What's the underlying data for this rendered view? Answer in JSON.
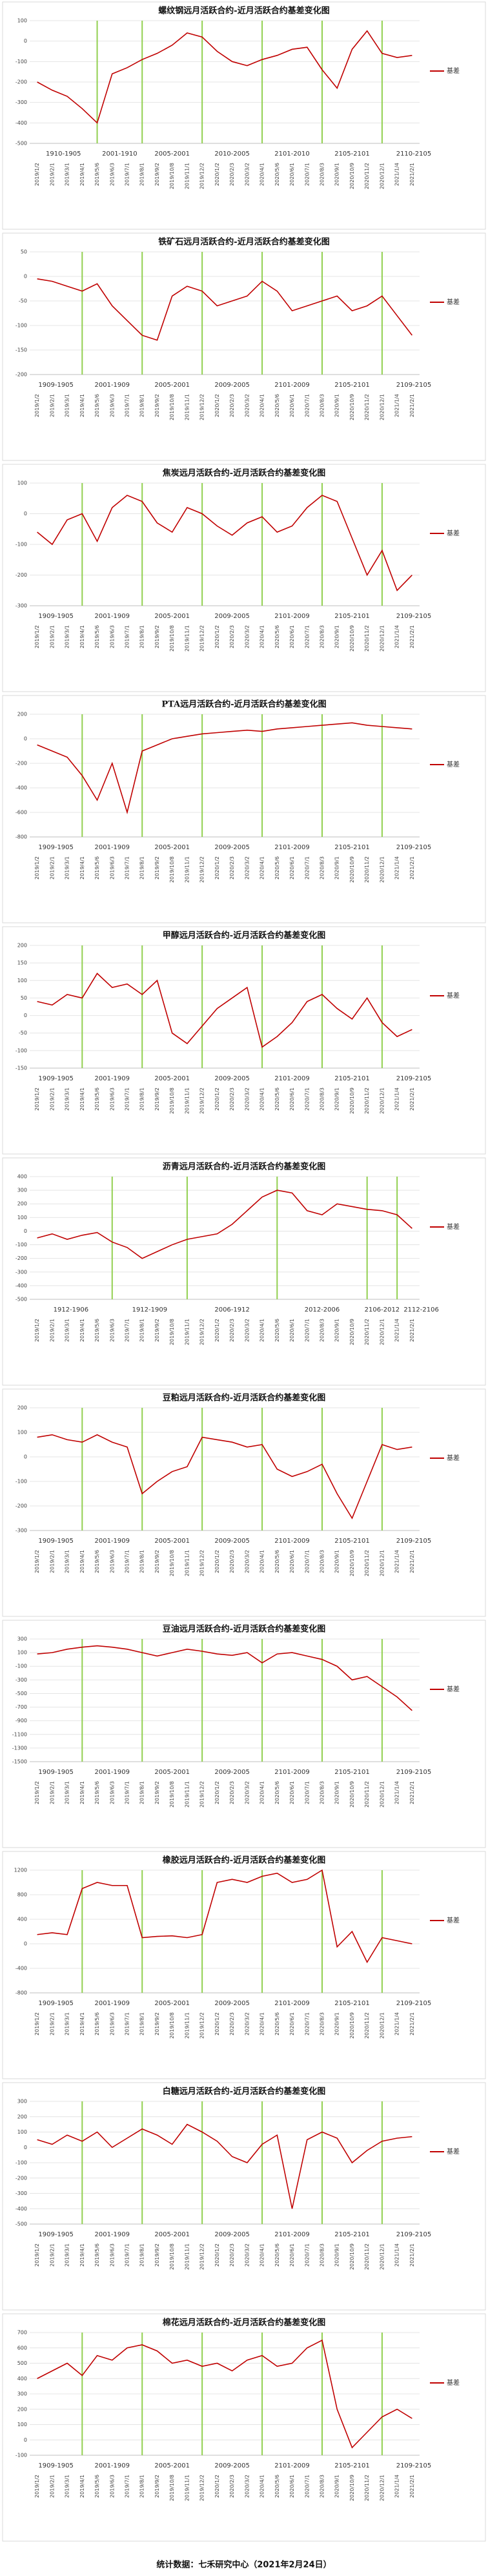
{
  "chart_data": [
    {
      "type": "line",
      "title": "螺纹钢远月活跃合约-近月活跃合约基差变化图",
      "categories": [
        "2019/1/2",
        "2019/2/1",
        "2019/3/1",
        "2019/4/1",
        "2019/5/6",
        "2019/6/3",
        "2019/7/1",
        "2019/8/1",
        "2019/9/2",
        "2019/10/8",
        "2019/11/1",
        "2019/12/2",
        "2020/1/2",
        "2020/2/3",
        "2020/3/2",
        "2020/4/1",
        "2020/5/6",
        "2020/6/1",
        "2020/7/1",
        "2020/8/3",
        "2020/9/1",
        "2020/10/9",
        "2020/11/2",
        "2020/12/1",
        "2021/1/4",
        "2021/2/1"
      ],
      "series": [
        {
          "name": "基差",
          "color": "#c00000",
          "values": [
            -200,
            -240,
            -270,
            -330,
            -400,
            -160,
            -130,
            -90,
            -60,
            -20,
            40,
            20,
            -50,
            -100,
            -120,
            -90,
            -70,
            -40,
            -30,
            -140,
            -230,
            -40,
            50,
            -60,
            -80,
            -70
          ]
        }
      ],
      "ylim": [
        -500,
        100
      ],
      "yticks": [
        100,
        0,
        -100,
        -200,
        -300,
        -400,
        -500
      ],
      "grid": true,
      "periods": [
        "1910-1905",
        "2001-1910",
        "2005-2001",
        "2010-2005",
        "2101-2010",
        "2105-2101",
        "2110-2105"
      ],
      "dividers": [
        "2019/5/6",
        "2019/8/1",
        "2019/12/2",
        "2020/4/1",
        "2020/8/3",
        "2020/12/1"
      ],
      "divider_color": "#92d050"
    },
    {
      "type": "line",
      "title": "铁矿石远月活跃合约-近月活跃合约基差变化图",
      "categories": [
        "2019/1/2",
        "2019/2/1",
        "2019/3/1",
        "2019/4/1",
        "2019/5/6",
        "2019/6/3",
        "2019/7/1",
        "2019/8/1",
        "2019/9/2",
        "2019/10/8",
        "2019/11/1",
        "2019/12/2",
        "2020/1/2",
        "2020/2/3",
        "2020/3/2",
        "2020/4/1",
        "2020/5/6",
        "2020/6/1",
        "2020/7/1",
        "2020/8/3",
        "2020/9/1",
        "2020/10/9",
        "2020/11/2",
        "2020/12/1",
        "2021/1/4",
        "2021/2/1"
      ],
      "series": [
        {
          "name": "基差",
          "color": "#c00000",
          "values": [
            -5,
            -10,
            -20,
            -30,
            -15,
            -60,
            -90,
            -120,
            -130,
            -40,
            -20,
            -30,
            -60,
            -50,
            -40,
            -10,
            -30,
            -70,
            -60,
            -50,
            -40,
            -70,
            -60,
            -40,
            -80,
            -120
          ]
        }
      ],
      "ylim": [
        -200,
        50
      ],
      "yticks": [
        50,
        0,
        -50,
        -100,
        -150,
        -200
      ],
      "grid": true,
      "periods": [
        "1909-1905",
        "2001-1909",
        "2005-2001",
        "2009-2005",
        "2101-2009",
        "2105-2101",
        "2109-2105"
      ],
      "dividers": [
        "2019/4/1",
        "2019/8/1",
        "2019/12/2",
        "2020/4/1",
        "2020/8/3",
        "2020/12/1"
      ],
      "divider_color": "#92d050"
    },
    {
      "type": "line",
      "title": "焦炭远月活跃合约-近月活跃合约基差变化图",
      "categories": [
        "2019/1/2",
        "2019/2/1",
        "2019/3/1",
        "2019/4/1",
        "2019/5/6",
        "2019/6/3",
        "2019/7/1",
        "2019/8/1",
        "2019/9/2",
        "2019/10/8",
        "2019/11/1",
        "2019/12/2",
        "2020/1/2",
        "2020/2/3",
        "2020/3/2",
        "2020/4/1",
        "2020/5/6",
        "2020/6/1",
        "2020/7/1",
        "2020/8/3",
        "2020/9/1",
        "2020/10/9",
        "2020/11/2",
        "2020/12/1",
        "2021/1/4",
        "2021/2/1"
      ],
      "series": [
        {
          "name": "基差",
          "color": "#c00000",
          "values": [
            -60,
            -100,
            -20,
            0,
            -90,
            20,
            60,
            40,
            -30,
            -60,
            20,
            0,
            -40,
            -70,
            -30,
            -10,
            -60,
            -40,
            20,
            60,
            40,
            -80,
            -200,
            -120,
            -250,
            -200
          ]
        }
      ],
      "ylim": [
        -300,
        100
      ],
      "yticks": [
        100,
        0,
        -100,
        -200,
        -300
      ],
      "grid": true,
      "periods": [
        "1909-1905",
        "2001-1909",
        "2005-2001",
        "2009-2005",
        "2101-2009",
        "2105-2101",
        "2109-2105"
      ],
      "dividers": [
        "2019/4/1",
        "2019/8/1",
        "2019/12/2",
        "2020/4/1",
        "2020/8/3",
        "2020/12/1"
      ],
      "divider_color": "#92d050"
    },
    {
      "type": "line",
      "title": "PTA远月活跃合约-近月活跃合约基差变化图",
      "categories": [
        "2019/1/2",
        "2019/2/1",
        "2019/3/1",
        "2019/4/1",
        "2019/5/6",
        "2019/6/3",
        "2019/7/1",
        "2019/8/1",
        "2019/9/2",
        "2019/10/8",
        "2019/11/1",
        "2019/12/2",
        "2020/1/2",
        "2020/2/3",
        "2020/3/2",
        "2020/4/1",
        "2020/5/6",
        "2020/6/1",
        "2020/7/1",
        "2020/8/3",
        "2020/9/1",
        "2020/10/9",
        "2020/11/2",
        "2020/12/1",
        "2021/1/4",
        "2021/2/1"
      ],
      "series": [
        {
          "name": "基差",
          "color": "#c00000",
          "values": [
            -50,
            -100,
            -150,
            -300,
            -500,
            -200,
            -600,
            -100,
            -50,
            0,
            20,
            40,
            50,
            60,
            70,
            60,
            80,
            90,
            100,
            110,
            120,
            130,
            110,
            100,
            90,
            80
          ]
        }
      ],
      "ylim": [
        -800,
        200
      ],
      "yticks": [
        200,
        0,
        -200,
        -400,
        -600,
        -800
      ],
      "grid": true,
      "periods": [
        "1909-1905",
        "2001-1909",
        "2005-2001",
        "2009-2005",
        "2101-2009",
        "2105-2101",
        "2109-2105"
      ],
      "dividers": [
        "2019/4/1",
        "2019/8/1",
        "2019/12/2",
        "2020/4/1",
        "2020/8/3",
        "2020/12/1"
      ],
      "divider_color": "#92d050"
    },
    {
      "type": "line",
      "title": "甲醇远月活跃合约-近月活跃合约基差变化图",
      "categories": [
        "2019/1/2",
        "2019/2/1",
        "2019/3/1",
        "2019/4/1",
        "2019/5/6",
        "2019/6/3",
        "2019/7/1",
        "2019/8/1",
        "2019/9/2",
        "2019/10/8",
        "2019/11/1",
        "2019/12/2",
        "2020/1/2",
        "2020/2/3",
        "2020/3/2",
        "2020/4/1",
        "2020/5/6",
        "2020/6/1",
        "2020/7/1",
        "2020/8/3",
        "2020/9/1",
        "2020/10/9",
        "2020/11/2",
        "2020/12/1",
        "2021/1/4",
        "2021/2/1"
      ],
      "series": [
        {
          "name": "基差",
          "color": "#c00000",
          "values": [
            40,
            30,
            60,
            50,
            120,
            80,
            90,
            60,
            100,
            -50,
            -80,
            -30,
            20,
            50,
            80,
            -90,
            -60,
            -20,
            40,
            60,
            20,
            -10,
            50,
            -20,
            -60,
            -40
          ]
        }
      ],
      "ylim": [
        -150,
        200
      ],
      "yticks": [
        200,
        150,
        100,
        50,
        0,
        -50,
        -100,
        -150
      ],
      "grid": true,
      "periods": [
        "1909-1905",
        "2001-1909",
        "2005-2001",
        "2009-2005",
        "2101-2009",
        "2105-2101",
        "2109-2105"
      ],
      "dividers": [
        "2019/4/1",
        "2019/8/1",
        "2019/12/2",
        "2020/4/1",
        "2020/8/3",
        "2020/12/1"
      ],
      "divider_color": "#92d050"
    },
    {
      "type": "line",
      "title": "沥青远月活跃合约-近月活跃合约基差变化图",
      "categories": [
        "2019/1/2",
        "2019/2/1",
        "2019/3/1",
        "2019/4/1",
        "2019/5/6",
        "2019/6/3",
        "2019/7/1",
        "2019/8/1",
        "2019/9/2",
        "2019/10/8",
        "2019/11/1",
        "2019/12/2",
        "2020/1/2",
        "2020/2/3",
        "2020/3/2",
        "2020/4/1",
        "2020/5/6",
        "2020/6/1",
        "2020/7/1",
        "2020/8/3",
        "2020/9/1",
        "2020/10/9",
        "2020/11/2",
        "2020/12/1",
        "2021/1/4",
        "2021/2/1"
      ],
      "series": [
        {
          "name": "基差",
          "color": "#c00000",
          "values": [
            -50,
            -20,
            -60,
            -30,
            -10,
            -80,
            -120,
            -200,
            -150,
            -100,
            -60,
            -40,
            -20,
            50,
            150,
            250,
            300,
            280,
            150,
            120,
            200,
            180,
            160,
            150,
            120,
            20
          ]
        }
      ],
      "ylim": [
        -500,
        400
      ],
      "yticks": [
        400,
        300,
        200,
        100,
        0,
        -100,
        -200,
        -300,
        -400,
        -500
      ],
      "grid": true,
      "periods": [
        "1912-1906",
        "1912-1909",
        "2006-1912",
        "2012-2006",
        "2106-2012",
        "2112-2106"
      ],
      "dividers": [
        "2019/6/3",
        "2019/11/1",
        "2020/5/6",
        "2020/11/2",
        "2021/1/4"
      ],
      "divider_color": "#92d050"
    },
    {
      "type": "line",
      "title": "豆粕远月活跃合约-近月活跃合约基差变化图",
      "categories": [
        "2019/1/2",
        "2019/2/1",
        "2019/3/1",
        "2019/4/1",
        "2019/5/6",
        "2019/6/3",
        "2019/7/1",
        "2019/8/1",
        "2019/9/2",
        "2019/10/8",
        "2019/11/1",
        "2019/12/2",
        "2020/1/2",
        "2020/2/3",
        "2020/3/2",
        "2020/4/1",
        "2020/5/6",
        "2020/6/1",
        "2020/7/1",
        "2020/8/3",
        "2020/9/1",
        "2020/10/9",
        "2020/11/2",
        "2020/12/1",
        "2021/1/4",
        "2021/2/1"
      ],
      "series": [
        {
          "name": "基差",
          "color": "#c00000",
          "values": [
            80,
            90,
            70,
            60,
            90,
            60,
            40,
            -150,
            -100,
            -60,
            -40,
            80,
            70,
            60,
            40,
            50,
            -50,
            -80,
            -60,
            -30,
            -150,
            -250,
            -100,
            50,
            30,
            40
          ]
        }
      ],
      "ylim": [
        -300,
        200
      ],
      "yticks": [
        200,
        100,
        0,
        -100,
        -200,
        -300
      ],
      "grid": true,
      "periods": [
        "1909-1905",
        "2001-1909",
        "2005-2001",
        "2009-2005",
        "2101-2009",
        "2105-2101",
        "2109-2105"
      ],
      "dividers": [
        "2019/4/1",
        "2019/8/1",
        "2019/12/2",
        "2020/4/1",
        "2020/8/3",
        "2020/12/1"
      ],
      "divider_color": "#92d050"
    },
    {
      "type": "line",
      "title": "豆油远月活跃合约-近月活跃合约基差变化图",
      "categories": [
        "2019/1/2",
        "2019/2/1",
        "2019/3/1",
        "2019/4/1",
        "2019/5/6",
        "2019/6/3",
        "2019/7/1",
        "2019/8/1",
        "2019/9/2",
        "2019/10/8",
        "2019/11/1",
        "2019/12/2",
        "2020/1/2",
        "2020/2/3",
        "2020/3/2",
        "2020/4/1",
        "2020/5/6",
        "2020/6/1",
        "2020/7/1",
        "2020/8/3",
        "2020/9/1",
        "2020/10/9",
        "2020/11/2",
        "2020/12/1",
        "2021/1/4",
        "2021/2/1"
      ],
      "series": [
        {
          "name": "基差",
          "color": "#c00000",
          "values": [
            80,
            100,
            150,
            180,
            200,
            180,
            150,
            100,
            50,
            100,
            150,
            120,
            80,
            60,
            100,
            -50,
            80,
            100,
            50,
            0,
            -100,
            -300,
            -250,
            -400,
            -550,
            -750
          ]
        }
      ],
      "ylim": [
        -1500,
        300
      ],
      "yticks": [
        300,
        100,
        -100,
        -300,
        -500,
        -700,
        -900,
        -1100,
        -1300,
        -1500
      ],
      "grid": true,
      "periods": [
        "1909-1905",
        "2001-1909",
        "2005-2001",
        "2009-2005",
        "2101-2009",
        "2105-2101",
        "2109-2105"
      ],
      "dividers": [
        "2019/4/1",
        "2019/8/1",
        "2019/12/2",
        "2020/4/1",
        "2020/8/3",
        "2020/12/1"
      ],
      "divider_color": "#92d050"
    },
    {
      "type": "line",
      "title": "橡胶远月活跃合约-近月活跃合约基差变化图",
      "categories": [
        "2019/1/2",
        "2019/2/1",
        "2019/3/1",
        "2019/4/1",
        "2019/5/6",
        "2019/6/3",
        "2019/7/1",
        "2019/8/1",
        "2019/9/2",
        "2019/10/8",
        "2019/11/1",
        "2019/12/2",
        "2020/1/2",
        "2020/2/3",
        "2020/3/2",
        "2020/4/1",
        "2020/5/6",
        "2020/6/1",
        "2020/7/1",
        "2020/8/3",
        "2020/9/1",
        "2020/10/9",
        "2020/11/2",
        "2020/12/1",
        "2021/1/4",
        "2021/2/1"
      ],
      "series": [
        {
          "name": "基差",
          "color": "#c00000",
          "values": [
            150,
            180,
            150,
            900,
            1000,
            950,
            950,
            100,
            120,
            130,
            100,
            150,
            1000,
            1050,
            1000,
            1100,
            1150,
            1000,
            1050,
            1200,
            -50,
            200,
            -300,
            100,
            50,
            0
          ]
        }
      ],
      "ylim": [
        -800,
        1200
      ],
      "yticks": [
        1200,
        800,
        400,
        0,
        -400,
        -800
      ],
      "grid": true,
      "periods": [
        "1909-1905",
        "2001-1909",
        "2005-2001",
        "2009-2005",
        "2101-2009",
        "2105-2101",
        "2109-2105"
      ],
      "dividers": [
        "2019/4/1",
        "2019/8/1",
        "2019/12/2",
        "2020/4/1",
        "2020/8/3",
        "2020/12/1"
      ],
      "divider_color": "#92d050"
    },
    {
      "type": "line",
      "title": "白糖远月活跃合约-近月活跃合约基差变化图",
      "categories": [
        "2019/1/2",
        "2019/2/1",
        "2019/3/1",
        "2019/4/1",
        "2019/5/6",
        "2019/6/3",
        "2019/7/1",
        "2019/8/1",
        "2019/9/2",
        "2019/10/8",
        "2019/11/1",
        "2019/12/2",
        "2020/1/2",
        "2020/2/3",
        "2020/3/2",
        "2020/4/1",
        "2020/5/6",
        "2020/6/1",
        "2020/7/1",
        "2020/8/3",
        "2020/9/1",
        "2020/10/9",
        "2020/11/2",
        "2020/12/1",
        "2021/1/4",
        "2021/2/1"
      ],
      "series": [
        {
          "name": "基差",
          "color": "#c00000",
          "values": [
            50,
            20,
            80,
            40,
            100,
            0,
            60,
            120,
            80,
            20,
            150,
            100,
            40,
            -60,
            -100,
            20,
            80,
            -400,
            50,
            100,
            60,
            -100,
            -20,
            40,
            60,
            70
          ]
        }
      ],
      "ylim": [
        -500,
        300
      ],
      "yticks": [
        300,
        200,
        100,
        0,
        -100,
        -200,
        -300,
        -400,
        -500
      ],
      "grid": true,
      "periods": [
        "1909-1905",
        "2001-1909",
        "2005-2001",
        "2009-2005",
        "2101-2009",
        "2105-2101",
        "2109-2105"
      ],
      "dividers": [
        "2019/4/1",
        "2019/8/1",
        "2019/12/2",
        "2020/4/1",
        "2020/8/3",
        "2020/12/1"
      ],
      "divider_color": "#92d050"
    },
    {
      "type": "line",
      "title": "棉花远月活跃合约-近月活跃合约基差变化图",
      "categories": [
        "2019/1/2",
        "2019/2/1",
        "2019/3/1",
        "2019/4/1",
        "2019/5/6",
        "2019/6/3",
        "2019/7/1",
        "2019/8/1",
        "2019/9/2",
        "2019/10/8",
        "2019/11/1",
        "2019/12/2",
        "2020/1/2",
        "2020/2/3",
        "2020/3/2",
        "2020/4/1",
        "2020/5/6",
        "2020/6/1",
        "2020/7/1",
        "2020/8/3",
        "2020/9/1",
        "2020/10/9",
        "2020/11/2",
        "2020/12/1",
        "2021/1/4",
        "2021/2/1"
      ],
      "series": [
        {
          "name": "基差",
          "color": "#c00000",
          "values": [
            400,
            450,
            500,
            420,
            550,
            520,
            600,
            620,
            580,
            500,
            520,
            480,
            500,
            450,
            520,
            550,
            480,
            500,
            600,
            650,
            200,
            -50,
            50,
            150,
            200,
            140
          ]
        }
      ],
      "ylim": [
        -100,
        700
      ],
      "yticks": [
        700,
        600,
        500,
        400,
        300,
        200,
        100,
        0,
        -100
      ],
      "grid": true,
      "periods": [
        "1909-1905",
        "2001-1909",
        "2005-2001",
        "2009-2005",
        "2101-2009",
        "2105-2101",
        "2109-2105"
      ],
      "dividers": [
        "2019/4/1",
        "2019/8/1",
        "2019/12/2",
        "2020/4/1",
        "2020/8/3",
        "2020/12/1"
      ],
      "divider_color": "#92d050"
    }
  ],
  "footer": "统计数据：七禾研究中心（2021年2月24日）"
}
